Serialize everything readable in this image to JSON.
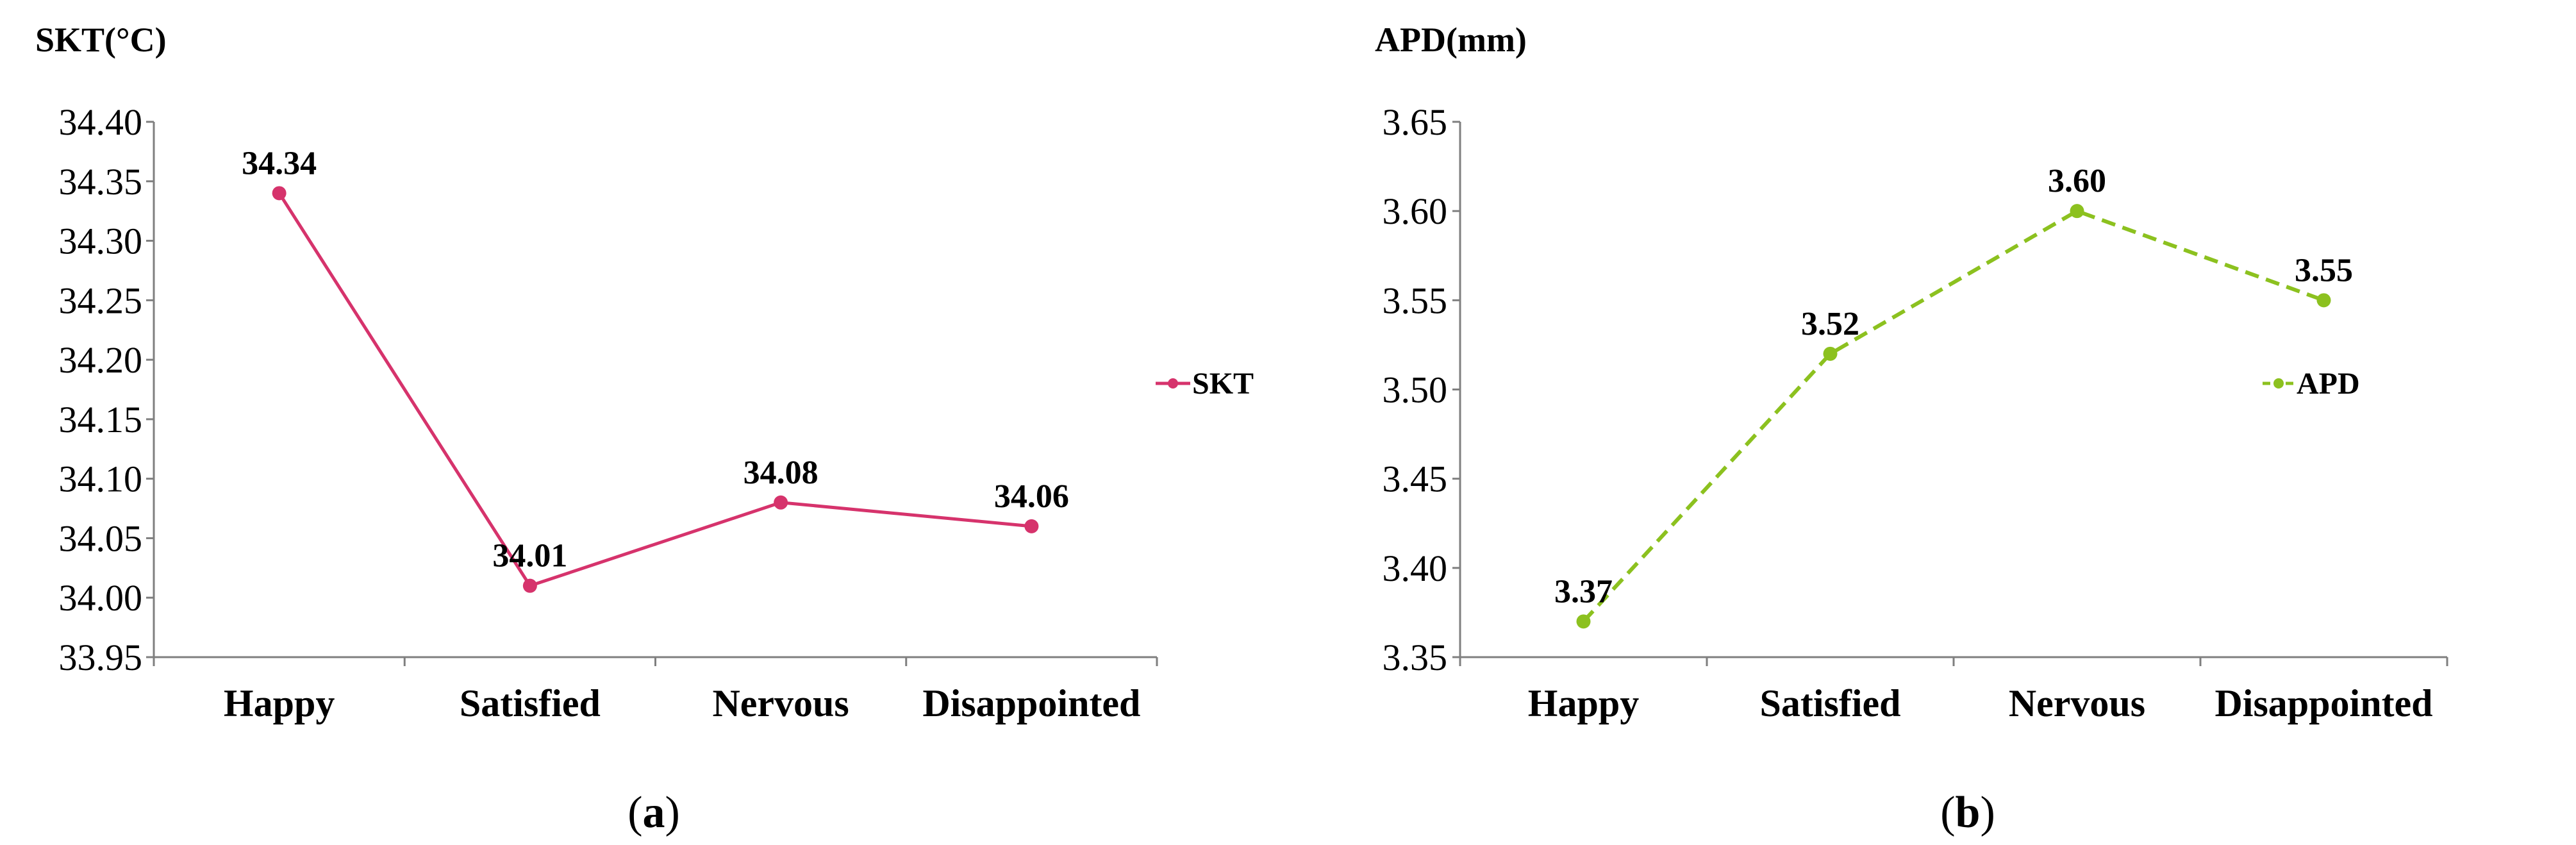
{
  "chart_data": [
    {
      "type": "line",
      "title": "",
      "ylabel": "SKT(°C)",
      "xlabel": "",
      "categories": [
        "Happy",
        "Satisfied",
        "Nervous",
        "Disappointed"
      ],
      "ylim": [
        33.95,
        34.4
      ],
      "yticks": [
        "33.95",
        "34.00",
        "34.05",
        "34.10",
        "34.15",
        "34.20",
        "34.25",
        "34.30",
        "34.35",
        "34.40"
      ],
      "line_style": "solid",
      "color": "#d6336c",
      "legend_position": "right",
      "series": [
        {
          "name": "SKT",
          "values": [
            34.34,
            34.01,
            34.08,
            34.06
          ],
          "labels": [
            "34.34",
            "34.01",
            "34.08",
            "34.06"
          ]
        }
      ],
      "caption_prefix": "(",
      "caption_letter": "a",
      "caption_suffix": ")"
    },
    {
      "type": "line",
      "title": "",
      "ylabel": "APD(mm)",
      "xlabel": "",
      "categories": [
        "Happy",
        "Satisfied",
        "Nervous",
        "Disappointed"
      ],
      "ylim": [
        3.35,
        3.65
      ],
      "yticks": [
        "3.35",
        "3.40",
        "3.45",
        "3.50",
        "3.55",
        "3.60",
        "3.65"
      ],
      "line_style": "dashed",
      "color": "#8cc11f",
      "legend_position": "right",
      "series": [
        {
          "name": "APD",
          "values": [
            3.37,
            3.52,
            3.6,
            3.55
          ],
          "labels": [
            "3.37",
            "3.52",
            "3.60",
            "3.55"
          ]
        }
      ],
      "caption_prefix": "(",
      "caption_letter": "b",
      "caption_suffix": ")"
    }
  ]
}
